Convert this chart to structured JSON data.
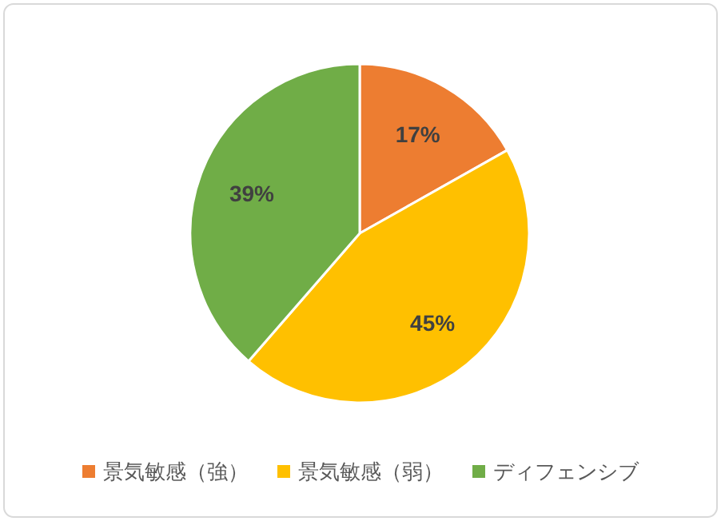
{
  "chart_data": {
    "type": "pie",
    "categories": [
      "景気敏感（強）",
      "景気敏感（弱）",
      "ディフェンシブ"
    ],
    "values": [
      17,
      45,
      39
    ],
    "colors": [
      "#ed7d31",
      "#ffc000",
      "#70ad47"
    ],
    "value_labels": [
      "17%",
      "45%",
      "39%"
    ],
    "legend": "bottom"
  }
}
